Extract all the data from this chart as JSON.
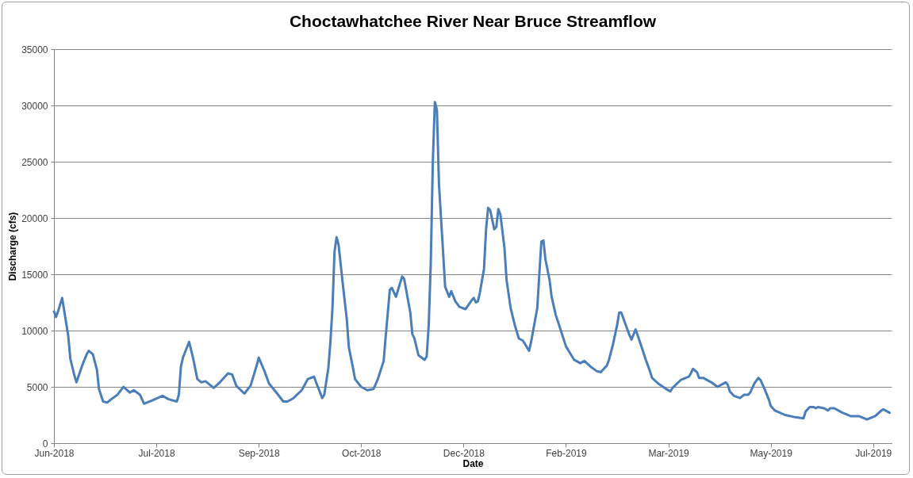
{
  "chart_data": {
    "type": "line",
    "title": "Choctawhatchee River Near Bruce Streamflow",
    "xlabel": "Date",
    "ylabel": "Discharge (cfs)",
    "xlim": [
      "2018-06-01",
      "2019-07-15"
    ],
    "xticks": [
      {
        "value": "2018-06-01",
        "label": "Jun-2018"
      },
      {
        "value": "2018-07-21",
        "label": "Jul-2018"
      },
      {
        "value": "2018-09-09",
        "label": "Sep-2018"
      },
      {
        "value": "2018-10-29",
        "label": "Oct-2018"
      },
      {
        "value": "2018-12-18",
        "label": "Dec-2018"
      },
      {
        "value": "2019-02-06",
        "label": "Feb-2019"
      },
      {
        "value": "2019-03-28",
        "label": "Mar-2019"
      },
      {
        "value": "2019-05-17",
        "label": "May-2019"
      },
      {
        "value": "2019-07-06",
        "label": "Jul-2019"
      }
    ],
    "ylim": [
      0,
      35000
    ],
    "yticks": [
      0,
      5000,
      10000,
      15000,
      20000,
      25000,
      30000,
      35000
    ],
    "grid": "y",
    "line_style": "solid",
    "marker": "none",
    "series": [
      {
        "color": "#4a7ebb",
        "x": [
          "2018-06-01",
          "2018-06-02",
          "2018-06-03",
          "2018-06-05",
          "2018-06-08",
          "2018-06-09",
          "2018-06-11",
          "2018-06-12",
          "2018-06-15",
          "2018-06-17",
          "2018-06-18",
          "2018-06-20",
          "2018-06-22",
          "2018-06-23",
          "2018-06-25",
          "2018-06-27",
          "2018-06-29",
          "2018-07-02",
          "2018-07-05",
          "2018-07-08",
          "2018-07-10",
          "2018-07-13",
          "2018-07-15",
          "2018-07-19",
          "2018-07-24",
          "2018-07-27",
          "2018-07-31",
          "2018-08-01",
          "2018-08-02",
          "2018-08-03",
          "2018-08-06",
          "2018-08-08",
          "2018-08-10",
          "2018-08-12",
          "2018-08-14",
          "2018-08-18",
          "2018-08-21",
          "2018-08-25",
          "2018-08-27",
          "2018-08-29",
          "2018-09-02",
          "2018-09-05",
          "2018-09-08",
          "2018-09-09",
          "2018-09-12",
          "2018-09-14",
          "2018-09-18",
          "2018-09-21",
          "2018-09-23",
          "2018-09-26",
          "2018-09-30",
          "2018-10-03",
          "2018-10-06",
          "2018-10-07",
          "2018-10-10",
          "2018-10-11",
          "2018-10-13",
          "2018-10-14",
          "2018-10-15",
          "2018-10-16",
          "2018-10-17",
          "2018-10-18",
          "2018-10-20",
          "2018-10-22",
          "2018-10-23",
          "2018-10-25",
          "2018-10-26",
          "2018-10-29",
          "2018-11-01",
          "2018-11-04",
          "2018-11-06",
          "2018-11-09",
          "2018-11-10",
          "2018-11-12",
          "2018-11-13",
          "2018-11-15",
          "2018-11-18",
          "2018-11-19",
          "2018-11-22",
          "2018-11-23",
          "2018-11-24",
          "2018-11-26",
          "2018-11-29",
          "2018-11-30",
          "2018-12-01",
          "2018-12-02",
          "2018-12-03",
          "2018-12-04",
          "2018-12-05",
          "2018-12-06",
          "2018-12-08",
          "2018-12-09",
          "2018-12-11",
          "2018-12-12",
          "2018-12-14",
          "2018-12-16",
          "2018-12-19",
          "2018-12-22",
          "2018-12-23",
          "2018-12-24",
          "2018-12-25",
          "2018-12-26",
          "2018-12-28",
          "2018-12-29",
          "2018-12-30",
          "2018-12-31",
          "2019-01-02",
          "2019-01-03",
          "2019-01-04",
          "2019-01-05",
          "2019-01-07",
          "2019-01-08",
          "2019-01-10",
          "2019-01-12",
          "2019-01-14",
          "2019-01-16",
          "2019-01-19",
          "2019-01-20",
          "2019-01-23",
          "2019-01-24",
          "2019-01-25",
          "2019-01-26",
          "2019-01-27",
          "2019-01-29",
          "2019-01-30",
          "2019-02-01",
          "2019-02-03",
          "2019-02-06",
          "2019-02-10",
          "2019-02-13",
          "2019-02-15",
          "2019-02-18",
          "2019-02-21",
          "2019-02-23",
          "2019-02-26",
          "2019-02-27",
          "2019-03-01",
          "2019-03-03",
          "2019-03-04",
          "2019-03-05",
          "2019-03-07",
          "2019-03-09",
          "2019-03-10",
          "2019-03-12",
          "2019-03-13",
          "2019-03-15",
          "2019-03-17",
          "2019-03-19",
          "2019-03-20",
          "2019-03-23",
          "2019-03-27",
          "2019-03-29",
          "2019-03-30",
          "2019-04-03",
          "2019-04-07",
          "2019-04-08",
          "2019-04-09",
          "2019-04-11",
          "2019-04-12",
          "2019-04-14",
          "2019-04-18",
          "2019-04-21",
          "2019-04-25",
          "2019-04-26",
          "2019-04-27",
          "2019-04-29",
          "2019-05-02",
          "2019-05-04",
          "2019-05-06",
          "2019-05-07",
          "2019-05-09",
          "2019-05-11",
          "2019-05-12",
          "2019-05-14",
          "2019-05-16",
          "2019-05-17",
          "2019-05-19",
          "2019-05-24",
          "2019-05-29",
          "2019-06-02",
          "2019-06-03",
          "2019-06-05",
          "2019-06-07",
          "2019-06-08",
          "2019-06-09",
          "2019-06-12",
          "2019-06-14",
          "2019-06-15",
          "2019-06-17",
          "2019-06-21",
          "2019-06-25",
          "2019-06-29",
          "2019-07-03",
          "2019-07-07",
          "2019-07-10",
          "2019-07-11",
          "2019-07-14"
        ],
        "values": [
          11700,
          11200,
          11700,
          12900,
          9500,
          7500,
          6000,
          5400,
          7000,
          7900,
          8200,
          7900,
          6500,
          4800,
          3700,
          3600,
          3900,
          4300,
          5000,
          4500,
          4700,
          4300,
          3500,
          3800,
          4200,
          3900,
          3700,
          4300,
          6800,
          7600,
          9000,
          7500,
          5700,
          5400,
          5500,
          4900,
          5400,
          6200,
          6100,
          5100,
          4400,
          5100,
          6900,
          7600,
          6300,
          5300,
          4400,
          3700,
          3700,
          4000,
          4700,
          5700,
          5900,
          5400,
          4000,
          4300,
          6700,
          9000,
          12000,
          17000,
          18300,
          17600,
          14200,
          11000,
          8500,
          6700,
          5700,
          5000,
          4700,
          4800,
          5600,
          7300,
          9500,
          13600,
          13800,
          13000,
          14800,
          14600,
          11600,
          9700,
          9300,
          7800,
          7400,
          7700,
          10500,
          16000,
          25000,
          30300,
          29600,
          23000,
          17000,
          13900,
          13000,
          13500,
          12600,
          12100,
          11900,
          12700,
          12900,
          12500,
          12600,
          13400,
          15500,
          19000,
          20900,
          20700,
          19000,
          19200,
          20800,
          20300,
          17300,
          14500,
          12000,
          10500,
          9300,
          9100,
          8200,
          9000,
          12000,
          15000,
          17900,
          18000,
          16300,
          14500,
          13000,
          11400,
          10300,
          8600,
          7400,
          7100,
          7300,
          6800,
          6400,
          6300,
          6900,
          7400,
          8800,
          10500,
          11600,
          11600,
          10600,
          9600,
          9200,
          10100,
          9600,
          8500,
          7400,
          6400,
          5800,
          5300,
          4800,
          4600,
          4900,
          5600,
          5900,
          6200,
          6600,
          6300,
          5800,
          5800,
          5400,
          5000,
          5400,
          5200,
          4600,
          4200,
          4000,
          4300,
          4300,
          4500,
          5300,
          5800,
          5600,
          4800,
          3900,
          3300,
          2900,
          2500,
          2300,
          2200,
          2800,
          3200,
          3200,
          3100,
          3200,
          3100,
          2900,
          3100,
          3100,
          2700,
          2400,
          2400,
          2100,
          2400,
          2900,
          3000,
          2700
        ]
      }
    ]
  }
}
